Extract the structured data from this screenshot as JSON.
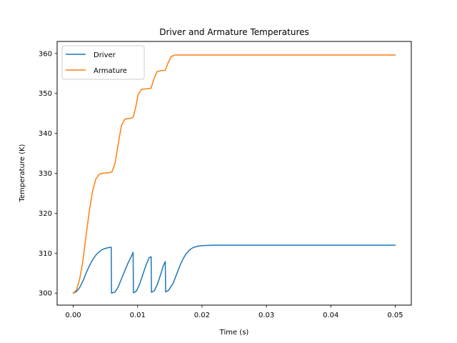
{
  "chart_data": {
    "type": "line",
    "title": "Driver and Armature Temperatures",
    "xlabel": "Time (s)",
    "ylabel": "Temperature (K)",
    "xlim": [
      -0.0025,
      0.0525
    ],
    "ylim": [
      297,
      363
    ],
    "xticks": [
      0.0,
      0.01,
      0.02,
      0.03,
      0.04,
      0.05
    ],
    "xtick_labels": [
      "0.00",
      "0.01",
      "0.02",
      "0.03",
      "0.04",
      "0.05"
    ],
    "yticks": [
      300,
      310,
      320,
      330,
      340,
      350,
      360
    ],
    "ytick_labels": [
      "300",
      "310",
      "320",
      "330",
      "340",
      "350",
      "360"
    ],
    "grid": false,
    "legend_position": "top-left",
    "series": [
      {
        "name": "Driver",
        "color": "#1f77b4",
        "points": [
          [
            0.0,
            300.0
          ],
          [
            0.0005,
            300.4
          ],
          [
            0.001,
            301.4
          ],
          [
            0.0015,
            303.0
          ],
          [
            0.002,
            305.0
          ],
          [
            0.0025,
            306.8
          ],
          [
            0.003,
            308.3
          ],
          [
            0.0035,
            309.5
          ],
          [
            0.004,
            310.3
          ],
          [
            0.0045,
            310.9
          ],
          [
            0.005,
            311.2
          ],
          [
            0.0055,
            311.4
          ],
          [
            0.0059,
            311.5
          ],
          [
            0.00595,
            300.0
          ],
          [
            0.0065,
            300.3
          ],
          [
            0.007,
            301.6
          ],
          [
            0.0075,
            303.6
          ],
          [
            0.008,
            305.6
          ],
          [
            0.0085,
            307.5
          ],
          [
            0.009,
            309.1
          ],
          [
            0.0093,
            310.2
          ],
          [
            0.00935,
            300.1
          ],
          [
            0.0098,
            300.5
          ],
          [
            0.0103,
            302.2
          ],
          [
            0.0108,
            304.6
          ],
          [
            0.0113,
            307.0
          ],
          [
            0.0118,
            308.9
          ],
          [
            0.0121,
            309.1
          ],
          [
            0.01215,
            300.2
          ],
          [
            0.0126,
            300.6
          ],
          [
            0.0131,
            302.3
          ],
          [
            0.0136,
            304.8
          ],
          [
            0.014,
            306.9
          ],
          [
            0.0143,
            307.9
          ],
          [
            0.01435,
            300.3
          ],
          [
            0.0148,
            300.7
          ],
          [
            0.0155,
            302.4
          ],
          [
            0.016,
            304.5
          ],
          [
            0.0165,
            306.6
          ],
          [
            0.017,
            308.4
          ],
          [
            0.0175,
            309.8
          ],
          [
            0.018,
            310.7
          ],
          [
            0.0185,
            311.3
          ],
          [
            0.019,
            311.6
          ],
          [
            0.0195,
            311.8
          ],
          [
            0.02,
            311.9
          ],
          [
            0.021,
            311.95
          ],
          [
            0.022,
            312.0
          ],
          [
            0.03,
            312.0
          ],
          [
            0.04,
            312.0
          ],
          [
            0.05,
            312.0
          ]
        ]
      },
      {
        "name": "Armature",
        "color": "#ff7f0e",
        "points": [
          [
            0.0,
            300.0
          ],
          [
            0.0005,
            300.8
          ],
          [
            0.001,
            303.5
          ],
          [
            0.0015,
            308.0
          ],
          [
            0.002,
            314.5
          ],
          [
            0.0025,
            320.5
          ],
          [
            0.003,
            325.5
          ],
          [
            0.0035,
            328.5
          ],
          [
            0.004,
            329.7
          ],
          [
            0.0045,
            330.0
          ],
          [
            0.005,
            330.1
          ],
          [
            0.0055,
            330.1
          ],
          [
            0.006,
            330.3
          ],
          [
            0.0065,
            332.5
          ],
          [
            0.007,
            337.5
          ],
          [
            0.0075,
            342.0
          ],
          [
            0.008,
            343.5
          ],
          [
            0.0085,
            343.7
          ],
          [
            0.009,
            343.8
          ],
          [
            0.0093,
            344.0
          ],
          [
            0.0097,
            346.5
          ],
          [
            0.0101,
            349.8
          ],
          [
            0.0106,
            351.0
          ],
          [
            0.0112,
            351.1
          ],
          [
            0.0121,
            351.3
          ],
          [
            0.0125,
            353.5
          ],
          [
            0.013,
            355.4
          ],
          [
            0.0136,
            355.7
          ],
          [
            0.0143,
            355.8
          ],
          [
            0.0147,
            357.5
          ],
          [
            0.0152,
            359.2
          ],
          [
            0.0158,
            359.6
          ],
          [
            0.017,
            359.6
          ],
          [
            0.03,
            359.6
          ],
          [
            0.04,
            359.6
          ],
          [
            0.05,
            359.6
          ]
        ]
      }
    ]
  }
}
